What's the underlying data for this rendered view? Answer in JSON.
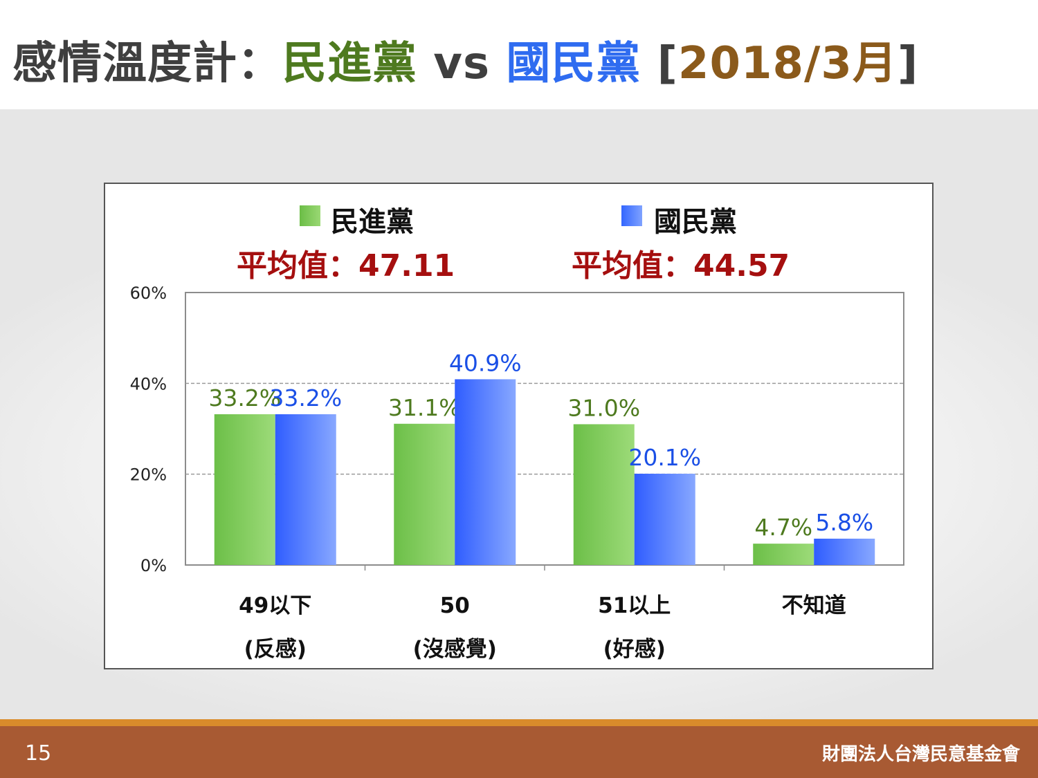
{
  "title": {
    "part1": "感情溫度計：",
    "part2": "民進黨",
    "part3": " vs ",
    "part4": "國民黨",
    "part5_open": " [",
    "part5_date": "2018/3月",
    "part5_close": "]"
  },
  "legend": {
    "dpp": "民進黨",
    "kmt": "國民黨"
  },
  "averages": {
    "dpp": "平均值：47.11",
    "kmt": "平均值：44.57"
  },
  "footer": {
    "page_number": "15",
    "organization": "財團法人台灣民意基金會"
  },
  "colors": {
    "title_gray": "#3f3f3f",
    "dpp_green": "#4e7a1f",
    "kmt_blue": "#1a4fe6",
    "date_brown": "#8b5a1b",
    "dpp_bar": "#7cc655",
    "kmt_bar": "#4a7aff",
    "avg_red": "#a50f0f"
  },
  "chart_data": {
    "type": "bar",
    "categories": [
      [
        "49以下",
        "(反感)"
      ],
      [
        "50",
        "(沒感覺)"
      ],
      [
        "51以上",
        "(好感)"
      ],
      [
        "不知道",
        ""
      ]
    ],
    "series": [
      {
        "name": "民進黨",
        "values": [
          33.2,
          31.1,
          31.0,
          4.7
        ],
        "labels": [
          "33.2%",
          "31.1%",
          "31.0%",
          "4.7%"
        ]
      },
      {
        "name": "國民黨",
        "values": [
          33.2,
          40.9,
          20.1,
          5.8
        ],
        "labels": [
          "33.2%",
          "40.9%",
          "20.1%",
          "5.8%"
        ]
      }
    ],
    "y_ticks": [
      "0%",
      "20%",
      "40%",
      "60%"
    ],
    "ylim": [
      0,
      60
    ],
    "grid": true,
    "legend_position": "top"
  }
}
